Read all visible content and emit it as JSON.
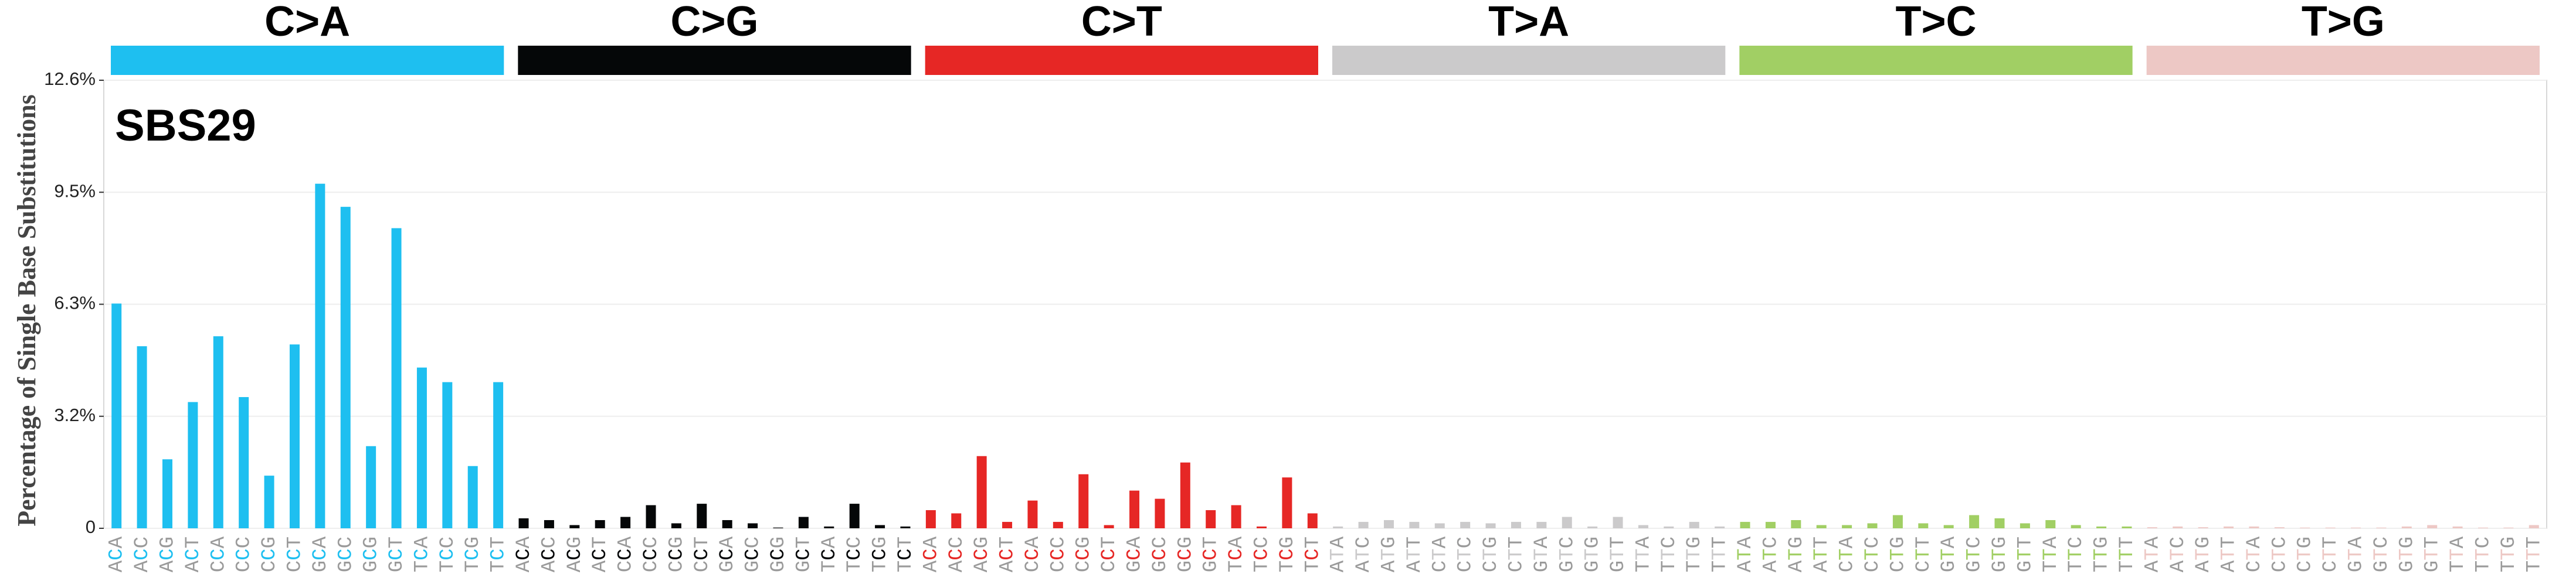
{
  "chart_data": {
    "type": "bar",
    "title": "SBS29",
    "ylabel": "Percentage of Single Base Substitutions",
    "ylim": [
      0,
      12.6
    ],
    "yticks": [
      0,
      {
        "value": 3.15,
        "label": "3.2%"
      },
      {
        "value": 6.3,
        "label": "6.3%"
      },
      {
        "value": 9.45,
        "label": "9.5%"
      },
      {
        "value": 12.6,
        "label": "12.6%"
      }
    ],
    "grid": true,
    "context_color": "#9a9a9a",
    "series": [
      {
        "name": "C>A",
        "color": "#1ebff0",
        "categories": [
          "ACA",
          "ACC",
          "ACG",
          "ACT",
          "CCA",
          "CCC",
          "CCG",
          "CCT",
          "GCA",
          "GCC",
          "GCG",
          "GCT",
          "TCA",
          "TCC",
          "TCG",
          "TCT"
        ],
        "values": [
          6.32,
          5.12,
          1.94,
          3.55,
          5.4,
          3.69,
          1.48,
          5.17,
          9.69,
          9.04,
          2.31,
          8.44,
          4.52,
          4.11,
          1.75,
          4.11
        ]
      },
      {
        "name": "C>G",
        "color": "#050708",
        "categories": [
          "ACA",
          "ACC",
          "ACG",
          "ACT",
          "CCA",
          "CCC",
          "CCG",
          "CCT",
          "GCA",
          "GCC",
          "GCG",
          "GCT",
          "TCA",
          "TCC",
          "TCG",
          "TCT"
        ],
        "values": [
          0.28,
          0.23,
          0.09,
          0.23,
          0.32,
          0.65,
          0.14,
          0.69,
          0.23,
          0.14,
          0.02,
          0.32,
          0.05,
          0.69,
          0.09,
          0.05
        ]
      },
      {
        "name": "C>T",
        "color": "#e62725",
        "categories": [
          "ACA",
          "ACC",
          "ACG",
          "ACT",
          "CCA",
          "CCC",
          "CCG",
          "CCT",
          "GCA",
          "GCC",
          "GCG",
          "GCT",
          "TCA",
          "TCC",
          "TCG",
          "TCT"
        ],
        "values": [
          0.51,
          0.42,
          2.03,
          0.18,
          0.78,
          0.18,
          1.52,
          0.09,
          1.06,
          0.83,
          1.85,
          0.51,
          0.65,
          0.05,
          1.43,
          0.42
        ]
      },
      {
        "name": "T>A",
        "color": "#cbcacb",
        "categories": [
          "ATA",
          "ATC",
          "ATG",
          "ATT",
          "CTA",
          "CTC",
          "CTG",
          "CTT",
          "GTA",
          "GTC",
          "GTG",
          "GTT",
          "TTA",
          "TTC",
          "TTG",
          "TTT"
        ],
        "values": [
          0.05,
          0.18,
          0.23,
          0.18,
          0.14,
          0.18,
          0.14,
          0.18,
          0.18,
          0.32,
          0.05,
          0.32,
          0.09,
          0.05,
          0.18,
          0.05
        ]
      },
      {
        "name": "T>C",
        "color": "#a1cf64",
        "categories": [
          "ATA",
          "ATC",
          "ATG",
          "ATT",
          "CTA",
          "CTC",
          "CTG",
          "CTT",
          "GTA",
          "GTC",
          "GTG",
          "GTT",
          "TTA",
          "TTC",
          "TTG",
          "TTT"
        ],
        "values": [
          0.18,
          0.18,
          0.23,
          0.09,
          0.09,
          0.14,
          0.37,
          0.14,
          0.09,
          0.37,
          0.28,
          0.14,
          0.23,
          0.09,
          0.05,
          0.05
        ]
      },
      {
        "name": "T>G",
        "color": "#edc8c5",
        "categories": [
          "ATA",
          "ATC",
          "ATG",
          "ATT",
          "CTA",
          "CTC",
          "CTG",
          "CTT",
          "GTA",
          "GTC",
          "GTG",
          "GTT",
          "TTA",
          "TTC",
          "TTG",
          "TTT"
        ],
        "values": [
          0.03,
          0.05,
          0.03,
          0.05,
          0.05,
          0.03,
          0.02,
          0.02,
          0.02,
          0.02,
          0.05,
          0.09,
          0.05,
          0.02,
          0.02,
          0.09
        ]
      }
    ]
  }
}
